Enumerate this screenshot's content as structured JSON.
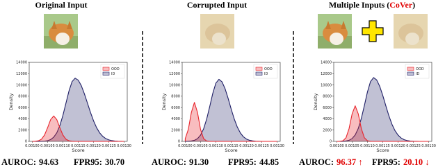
{
  "panels": [
    {
      "title_parts": [
        {
          "text": "Original Input"
        }
      ],
      "metrics": {
        "auroc_label": "AUROC:",
        "auroc": "94.63",
        "fpr_label": "FPR95:",
        "fpr": "30.70"
      }
    },
    {
      "title_parts": [
        {
          "text": "Corrupted Input"
        }
      ],
      "metrics": {
        "auroc_label": "AUROC:",
        "auroc": "91.30",
        "fpr_label": "FPR95:",
        "fpr": "44.85"
      }
    },
    {
      "title_parts": [
        {
          "text": "Multiple Inputs ("
        },
        {
          "text": "CoVer",
          "color": "#e00000"
        },
        {
          "text": ")"
        }
      ],
      "metrics": {
        "auroc_label": "AUROC:",
        "auroc": "96.37 ↑",
        "fpr_label": "FPR95:",
        "fpr": "20.10 ↓",
        "value_color": "#e00000"
      }
    }
  ],
  "chart_data": [
    {
      "type": "area",
      "xlabel": "Score",
      "ylabel": "Density",
      "legend": "upper right",
      "x": [
        0.001,
        0.00101,
        0.00102,
        0.00103,
        0.00104,
        0.00105,
        0.00106,
        0.00107,
        0.00108,
        0.00109,
        0.0011,
        0.00111,
        0.00112,
        0.00113,
        0.00114,
        0.00115,
        0.00116,
        0.00117,
        0.00118,
        0.00119,
        0.0012,
        0.00121,
        0.00122,
        0.00123,
        0.00124,
        0.00125,
        0.00126,
        0.00127,
        0.00128,
        0.00129,
        0.0013
      ],
      "series": [
        {
          "name": "OOD",
          "color": "#e8242c",
          "values": [
            0,
            20,
            95,
            380,
            1120,
            2420,
            3860,
            4500,
            3860,
            2420,
            1120,
            380,
            95,
            20,
            0,
            0,
            0,
            0,
            0,
            0,
            0,
            0,
            0,
            0,
            0,
            0,
            0,
            0,
            0,
            0,
            0
          ]
        },
        {
          "name": "ID",
          "color": "#1f1f66",
          "values": [
            0,
            0,
            5,
            15,
            45,
            120,
            320,
            740,
            1510,
            2790,
            4600,
            6790,
            8960,
            10600,
            11200,
            10850,
            9880,
            8450,
            6800,
            5130,
            3640,
            2420,
            1510,
            890,
            490,
            260,
            125,
            60,
            25,
            10,
            0
          ]
        }
      ],
      "xlim": [
        0.00099,
        0.00131
      ],
      "xticks": [
        {
          "value": 0.001,
          "label": "0.00100"
        },
        {
          "value": 0.00105,
          "label": "0.00105"
        },
        {
          "value": 0.0011,
          "label": "0.00110"
        },
        {
          "value": 0.00115,
          "label": "0.00115"
        },
        {
          "value": 0.0012,
          "label": "0.00120"
        },
        {
          "value": 0.00125,
          "label": "0.00125"
        },
        {
          "value": 0.0013,
          "label": "0.00130"
        }
      ],
      "ylim": [
        0,
        14000
      ],
      "yticks": [
        0,
        2000,
        4000,
        6000,
        8000,
        10000,
        12000,
        14000
      ]
    },
    {
      "type": "area",
      "xlabel": "Score",
      "ylabel": "Density",
      "legend": "upper right",
      "x": [
        0.001,
        0.00101,
        0.00102,
        0.00103,
        0.00104,
        0.00105,
        0.00106,
        0.00107,
        0.00108,
        0.00109,
        0.0011,
        0.00111,
        0.00112,
        0.00113,
        0.00114,
        0.00115,
        0.00116,
        0.00117,
        0.00118,
        0.00119,
        0.0012,
        0.00121,
        0.00122,
        0.00123,
        0.00124,
        0.00125,
        0.00126,
        0.00127,
        0.00128,
        0.00129,
        0.0013
      ],
      "series": [
        {
          "name": "OOD",
          "color": "#e8242c",
          "values": [
            480,
            2110,
            5130,
            6900,
            5130,
            2110,
            480,
            60,
            0,
            0,
            0,
            0,
            0,
            0,
            0,
            0,
            0,
            0,
            0,
            0,
            0,
            0,
            0,
            0,
            0,
            0,
            0,
            0,
            0,
            0,
            0
          ]
        },
        {
          "name": "ID",
          "color": "#1f1f66",
          "values": [
            5,
            20,
            65,
            190,
            480,
            1110,
            2230,
            3960,
            6190,
            8530,
            10320,
            11000,
            10560,
            9340,
            7620,
            5730,
            3960,
            2530,
            1490,
            800,
            400,
            190,
            80,
            30,
            10,
            0,
            0,
            0,
            0,
            0,
            0
          ]
        }
      ],
      "xlim": [
        0.00099,
        0.00131
      ],
      "xticks": [
        {
          "value": 0.001,
          "label": "0.00100"
        },
        {
          "value": 0.00105,
          "label": "0.00105"
        },
        {
          "value": 0.0011,
          "label": "0.00110"
        },
        {
          "value": 0.00115,
          "label": "0.00115"
        },
        {
          "value": 0.0012,
          "label": "0.00120"
        },
        {
          "value": 0.00125,
          "label": "0.00125"
        },
        {
          "value": 0.0013,
          "label": "0.00130"
        }
      ],
      "ylim": [
        0,
        14000
      ],
      "yticks": [
        0,
        2000,
        4000,
        6000,
        8000,
        10000,
        12000,
        14000
      ]
    },
    {
      "type": "area",
      "xlabel": "Score",
      "ylabel": "Density",
      "legend": "upper right",
      "x": [
        0.001,
        0.00101,
        0.00102,
        0.00103,
        0.00104,
        0.00105,
        0.00106,
        0.00107,
        0.00108,
        0.00109,
        0.0011,
        0.00111,
        0.00112,
        0.00113,
        0.00114,
        0.00115,
        0.00116,
        0.00117,
        0.00118,
        0.00119,
        0.0012,
        0.00121,
        0.00122,
        0.00123,
        0.00124,
        0.00125,
        0.00126,
        0.00127,
        0.00128,
        0.00129,
        0.0013
      ],
      "series": [
        {
          "name": "OOD",
          "color": "#e8242c",
          "values": [
            0,
            10,
            110,
            640,
            2270,
            4880,
            6300,
            4880,
            2270,
            640,
            110,
            10,
            0,
            0,
            0,
            0,
            0,
            0,
            0,
            0,
            0,
            0,
            0,
            0,
            0,
            0,
            0,
            0,
            0,
            0,
            0
          ]
        },
        {
          "name": "ID",
          "color": "#1f1f66",
          "values": [
            0,
            5,
            20,
            70,
            190,
            500,
            1140,
            2290,
            4070,
            6360,
            8760,
            10600,
            11300,
            10890,
            9760,
            8140,
            6300,
            4530,
            3030,
            1890,
            1100,
            590,
            290,
            140,
            60,
            25,
            10,
            0,
            0,
            0,
            0
          ]
        }
      ],
      "xlim": [
        0.00099,
        0.00131
      ],
      "xticks": [
        {
          "value": 0.001,
          "label": "0.00100"
        },
        {
          "value": 0.00105,
          "label": "0.00105"
        },
        {
          "value": 0.0011,
          "label": "0.00110"
        },
        {
          "value": 0.00115,
          "label": "0.00115"
        },
        {
          "value": 0.0012,
          "label": "0.00120"
        },
        {
          "value": 0.00125,
          "label": "0.00125"
        },
        {
          "value": 0.0013,
          "label": "0.00130"
        }
      ],
      "ylim": [
        0,
        14000
      ],
      "yticks": [
        0,
        2000,
        4000,
        6000,
        8000,
        10000,
        12000,
        14000
      ]
    }
  ]
}
